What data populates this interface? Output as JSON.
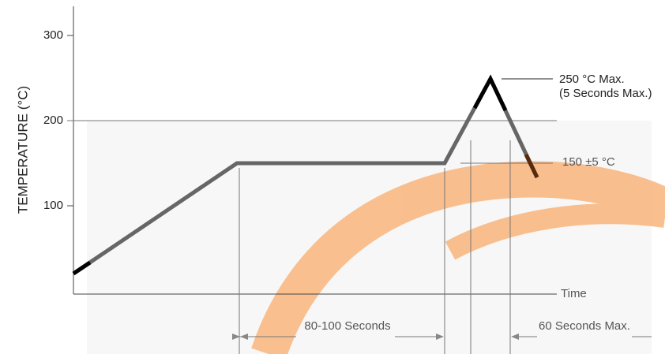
{
  "y_axis": {
    "label": "TEMPERATURE (°C)",
    "ticks": [
      "300",
      "200",
      "100"
    ]
  },
  "x_axis": {
    "label": "Time"
  },
  "annotations": {
    "peak_line1": "250 °C Max.",
    "peak_line2": "(5 Seconds Max.)",
    "soak": "150 ±5 °C",
    "soak_time": "80-100 Seconds",
    "peak_time": "60 Seconds Max."
  }
}
